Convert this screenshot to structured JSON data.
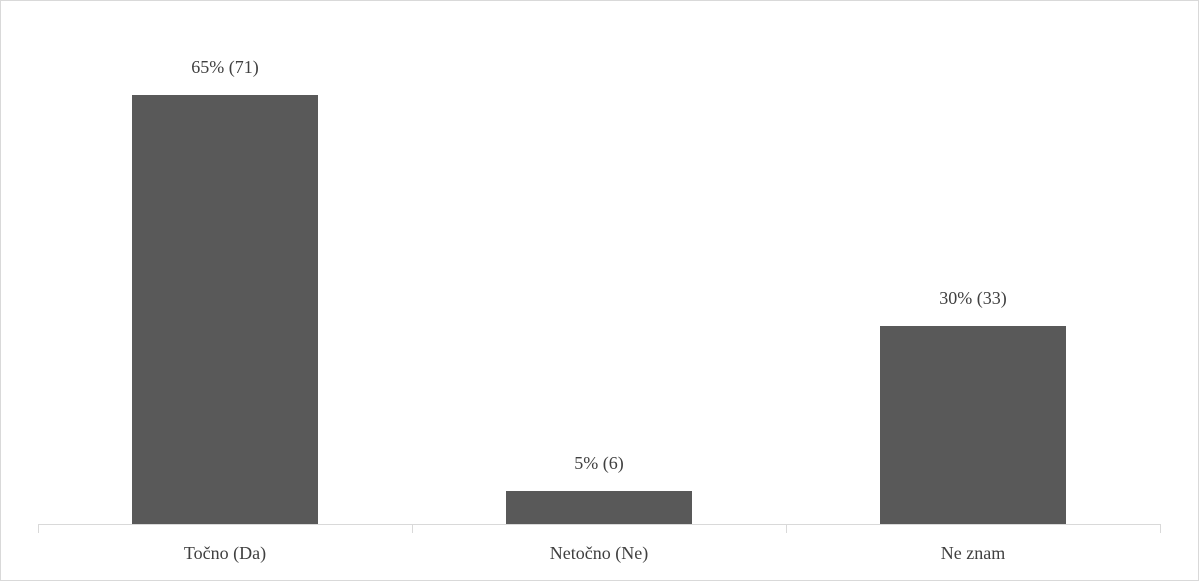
{
  "chart_data": {
    "type": "bar",
    "categories": [
      "Točno (Da)",
      "Netočno (Ne)",
      "Ne znam"
    ],
    "values": [
      65,
      5,
      30
    ],
    "value_labels": [
      "65% (71)",
      "5% (6)",
      "30% (33)"
    ],
    "color": "#595959"
  }
}
